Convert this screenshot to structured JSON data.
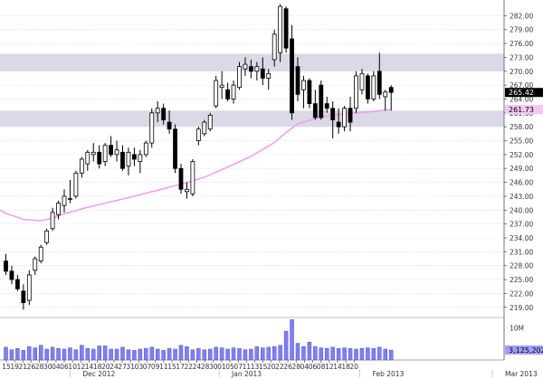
{
  "chart_data": {
    "type": "candlestick",
    "colors": {
      "up": "#ffffff",
      "down": "#000000",
      "wick": "#000000",
      "band": "#dcd9e6",
      "ma": "#f0a0f0",
      "volume": "#8080f0",
      "volume_edge": "#5050d0",
      "grid": "#c8c8c8",
      "axis": "#555555",
      "last_tag_bg": "#000000",
      "last_tag_fg": "#ffffff",
      "ma_tag_bg": "#f4c6f4",
      "ma_tag_fg": "#000000",
      "vol_tag_bg": "#a0a0f8",
      "vol_tag_fg": "#000000"
    },
    "ylim": [
      217,
      285
    ],
    "y_ticks": [
      "219.00",
      "222.00",
      "225.00",
      "228.00",
      "231.00",
      "234.00",
      "237.00",
      "240.00",
      "243.00",
      "246.00",
      "249.00",
      "252.00",
      "255.00",
      "258.00",
      "261.00",
      "264.00",
      "267.00",
      "270.00",
      "273.00",
      "276.00",
      "279.00",
      "282.00"
    ],
    "y_tick_values": [
      219,
      222,
      225,
      228,
      231,
      234,
      237,
      240,
      243,
      246,
      249,
      252,
      255,
      258,
      261,
      264,
      267,
      270,
      273,
      276,
      279,
      282
    ],
    "bands": [
      [
        270,
        273.8
      ],
      [
        258,
        261.5
      ]
    ],
    "last_price_label": "265.42",
    "last_price": 265.42,
    "ma_label": "261.73",
    "ma_value": 261.73,
    "volume_tick_label": "10M",
    "volume_label": "3,125,202",
    "volume_last": 3125202,
    "volume_max": 13000000,
    "x_ticks": [
      "15",
      "19",
      "21",
      "26",
      "28",
      "30",
      "04",
      "06",
      "10",
      "12",
      "14",
      "18",
      "20",
      "24",
      "27",
      "31",
      "03",
      "07",
      "09",
      "11",
      "15",
      "17",
      "22",
      "24",
      "28",
      "30",
      "01",
      "05",
      "07",
      "11",
      "13",
      "15",
      "20",
      "22",
      "26",
      "28",
      "04",
      "06",
      "08",
      "12",
      "14",
      "18",
      "20"
    ],
    "months": [
      {
        "label": "Dec 2012",
        "at": 9
      },
      {
        "label": "Jan 2013",
        "at": 27
      },
      {
        "label": "Feb 2013",
        "at": 44
      },
      {
        "label": "Mar 2013",
        "at": 60
      }
    ],
    "candles": [
      {
        "o": 229.0,
        "h": 230.5,
        "l": 226.0,
        "c": 226.8
      },
      {
        "o": 226.8,
        "h": 228.0,
        "l": 224.0,
        "c": 225.0
      },
      {
        "o": 225.0,
        "h": 226.0,
        "l": 222.5,
        "c": 223.0
      },
      {
        "o": 222.5,
        "h": 224.0,
        "l": 218.5,
        "c": 220.0
      },
      {
        "o": 220.5,
        "h": 227.0,
        "l": 219.5,
        "c": 226.0
      },
      {
        "o": 227.0,
        "h": 230.0,
        "l": 226.0,
        "c": 229.5
      },
      {
        "o": 229.0,
        "h": 232.5,
        "l": 228.5,
        "c": 232.0
      },
      {
        "o": 233.0,
        "h": 236.0,
        "l": 232.5,
        "c": 235.5
      },
      {
        "o": 236.0,
        "h": 240.5,
        "l": 235.5,
        "c": 239.5
      },
      {
        "o": 239.0,
        "h": 242.0,
        "l": 238.0,
        "c": 241.5
      },
      {
        "o": 241.0,
        "h": 244.5,
        "l": 239.5,
        "c": 243.0
      },
      {
        "o": 242.5,
        "h": 246.5,
        "l": 241.5,
        "c": 242.5
      },
      {
        "o": 243.0,
        "h": 248.5,
        "l": 242.5,
        "c": 248.0
      },
      {
        "o": 248.0,
        "h": 251.5,
        "l": 247.0,
        "c": 251.0
      },
      {
        "o": 250.0,
        "h": 253.0,
        "l": 248.5,
        "c": 252.5
      },
      {
        "o": 252.0,
        "h": 254.5,
        "l": 250.5,
        "c": 252.5
      },
      {
        "o": 252.5,
        "h": 254.0,
        "l": 249.0,
        "c": 250.0
      },
      {
        "o": 250.5,
        "h": 254.5,
        "l": 249.5,
        "c": 254.0
      },
      {
        "o": 254.0,
        "h": 256.0,
        "l": 251.5,
        "c": 252.0
      },
      {
        "o": 252.0,
        "h": 255.0,
        "l": 250.5,
        "c": 253.0
      },
      {
        "o": 252.5,
        "h": 254.0,
        "l": 248.5,
        "c": 249.0
      },
      {
        "o": 249.5,
        "h": 253.5,
        "l": 247.5,
        "c": 252.5
      },
      {
        "o": 252.0,
        "h": 253.5,
        "l": 249.5,
        "c": 251.0
      },
      {
        "o": 250.5,
        "h": 253.0,
        "l": 248.0,
        "c": 252.0
      },
      {
        "o": 252.0,
        "h": 255.0,
        "l": 251.5,
        "c": 254.5
      },
      {
        "o": 254.5,
        "h": 262.0,
        "l": 253.5,
        "c": 261.0
      },
      {
        "o": 261.0,
        "h": 263.5,
        "l": 259.0,
        "c": 262.0
      },
      {
        "o": 262.0,
        "h": 263.0,
        "l": 258.5,
        "c": 259.5
      },
      {
        "o": 259.0,
        "h": 261.5,
        "l": 256.5,
        "c": 257.5
      },
      {
        "o": 257.5,
        "h": 258.5,
        "l": 248.0,
        "c": 249.0
      },
      {
        "o": 249.0,
        "h": 250.0,
        "l": 243.5,
        "c": 244.5
      },
      {
        "o": 244.0,
        "h": 246.0,
        "l": 242.5,
        "c": 244.5
      },
      {
        "o": 243.5,
        "h": 251.0,
        "l": 243.0,
        "c": 250.5
      },
      {
        "o": 255.0,
        "h": 258.0,
        "l": 254.0,
        "c": 257.5
      },
      {
        "o": 256.5,
        "h": 259.5,
        "l": 256.0,
        "c": 259.0
      },
      {
        "o": 257.5,
        "h": 261.0,
        "l": 257.0,
        "c": 260.5
      },
      {
        "o": 262.5,
        "h": 269.0,
        "l": 262.0,
        "c": 268.0
      },
      {
        "o": 266.5,
        "h": 270.0,
        "l": 264.0,
        "c": 267.0
      },
      {
        "o": 266.0,
        "h": 267.5,
        "l": 263.5,
        "c": 264.0
      },
      {
        "o": 264.0,
        "h": 268.0,
        "l": 263.0,
        "c": 267.0
      },
      {
        "o": 266.5,
        "h": 272.0,
        "l": 266.0,
        "c": 271.0
      },
      {
        "o": 270.5,
        "h": 273.0,
        "l": 269.0,
        "c": 271.5
      },
      {
        "o": 271.0,
        "h": 272.5,
        "l": 268.5,
        "c": 270.0
      },
      {
        "o": 270.0,
        "h": 272.0,
        "l": 268.0,
        "c": 271.0
      },
      {
        "o": 270.5,
        "h": 273.0,
        "l": 267.0,
        "c": 268.5
      },
      {
        "o": 268.5,
        "h": 270.5,
        "l": 266.0,
        "c": 269.5
      },
      {
        "o": 272.5,
        "h": 279.0,
        "l": 271.0,
        "c": 278.0
      },
      {
        "o": 274.0,
        "h": 284.5,
        "l": 272.0,
        "c": 284.0
      },
      {
        "o": 283.5,
        "h": 284.0,
        "l": 274.0,
        "c": 275.0
      },
      {
        "o": 277.0,
        "h": 280.0,
        "l": 259.5,
        "c": 261.0
      },
      {
        "o": 271.0,
        "h": 273.0,
        "l": 263.5,
        "c": 265.0
      },
      {
        "o": 266.0,
        "h": 269.0,
        "l": 262.0,
        "c": 268.0
      },
      {
        "o": 268.0,
        "h": 268.5,
        "l": 262.0,
        "c": 263.0
      },
      {
        "o": 263.0,
        "h": 266.0,
        "l": 259.5,
        "c": 260.0
      },
      {
        "o": 267.0,
        "h": 268.0,
        "l": 259.5,
        "c": 260.0
      },
      {
        "o": 263.0,
        "h": 264.5,
        "l": 261.0,
        "c": 262.0
      },
      {
        "o": 262.0,
        "h": 263.5,
        "l": 255.5,
        "c": 259.5
      },
      {
        "o": 259.0,
        "h": 262.0,
        "l": 256.5,
        "c": 258.0
      },
      {
        "o": 258.0,
        "h": 262.5,
        "l": 257.0,
        "c": 262.0
      },
      {
        "o": 262.0,
        "h": 264.5,
        "l": 257.0,
        "c": 259.0
      },
      {
        "o": 262.0,
        "h": 270.0,
        "l": 261.0,
        "c": 269.0
      },
      {
        "o": 266.0,
        "h": 270.5,
        "l": 265.0,
        "c": 269.5
      },
      {
        "o": 269.0,
        "h": 269.5,
        "l": 263.0,
        "c": 264.0
      },
      {
        "o": 264.0,
        "h": 270.0,
        "l": 263.5,
        "c": 269.0
      },
      {
        "o": 270.0,
        "h": 274.0,
        "l": 264.0,
        "c": 265.0
      },
      {
        "o": 264.5,
        "h": 266.0,
        "l": 261.5,
        "c": 265.5
      },
      {
        "o": 266.5,
        "h": 267.0,
        "l": 261.5,
        "c": 265.42
      }
    ],
    "ma_points": [
      {
        "i": -1,
        "v": 240.0
      },
      {
        "i": 0,
        "v": 239.3
      },
      {
        "i": 3,
        "v": 238.0
      },
      {
        "i": 6,
        "v": 237.7
      },
      {
        "i": 8,
        "v": 238.3
      },
      {
        "i": 10,
        "v": 239.2
      },
      {
        "i": 14,
        "v": 240.6
      },
      {
        "i": 18,
        "v": 241.8
      },
      {
        "i": 22,
        "v": 243.0
      },
      {
        "i": 26,
        "v": 244.3
      },
      {
        "i": 30,
        "v": 245.6
      },
      {
        "i": 34,
        "v": 247.1
      },
      {
        "i": 38,
        "v": 249.3
      },
      {
        "i": 42,
        "v": 251.6
      },
      {
        "i": 46,
        "v": 254.6
      },
      {
        "i": 48,
        "v": 256.8
      },
      {
        "i": 50,
        "v": 258.6
      },
      {
        "i": 53,
        "v": 259.8
      },
      {
        "i": 56,
        "v": 260.5
      },
      {
        "i": 59,
        "v": 260.9
      },
      {
        "i": 62,
        "v": 261.2
      },
      {
        "i": 66,
        "v": 261.73
      }
    ],
    "volumes": [
      4.0,
      3.2,
      3.6,
      3.0,
      4.2,
      3.8,
      4.6,
      3.4,
      4.0,
      3.6,
      3.4,
      3.8,
      3.2,
      4.6,
      3.6,
      3.4,
      4.4,
      4.4,
      3.4,
      3.4,
      4.0,
      3.2,
      3.0,
      3.4,
      3.6,
      4.0,
      3.4,
      3.0,
      3.6,
      3.4,
      4.6,
      4.2,
      3.2,
      3.6,
      3.2,
      3.4,
      4.0,
      3.8,
      3.4,
      3.8,
      3.6,
      3.2,
      3.4,
      4.2,
      3.8,
      4.0,
      4.2,
      4.6,
      9.0,
      12.6,
      5.2,
      4.2,
      5.6,
      4.2,
      3.8,
      3.6,
      4.0,
      3.6,
      3.8,
      3.6,
      3.4,
      3.6,
      3.8,
      3.6,
      4.0,
      3.4,
      3.1
    ]
  }
}
